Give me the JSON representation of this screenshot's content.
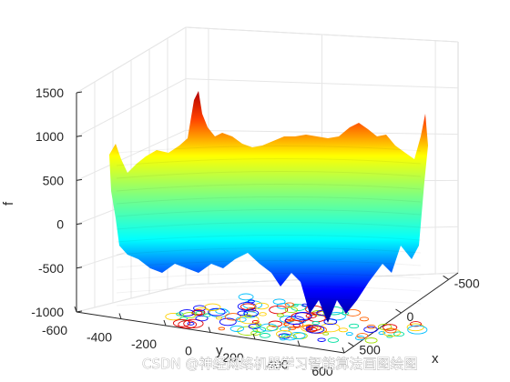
{
  "chart_data": {
    "type": "surface",
    "colormap": "jet",
    "zlabel": "f",
    "xlabel": "x",
    "ylabel": "y",
    "x_ticks": [
      "-500",
      "0",
      "500"
    ],
    "y_ticks": [
      "-600",
      "-400",
      "-200",
      "0",
      "200",
      "400",
      "600"
    ],
    "z_ticks": [
      "-1000",
      "-500",
      "0",
      "500",
      "1000",
      "1500"
    ],
    "xlim": [
      -600,
      600
    ],
    "ylim": [
      -600,
      600
    ],
    "zlim": [
      -1000,
      1500
    ],
    "surface_range": [
      -1000,
      1500
    ],
    "contour_plane": true,
    "grid": true
  },
  "watermark": "CSDN @神经网络机器学习智能算法画图绘图"
}
